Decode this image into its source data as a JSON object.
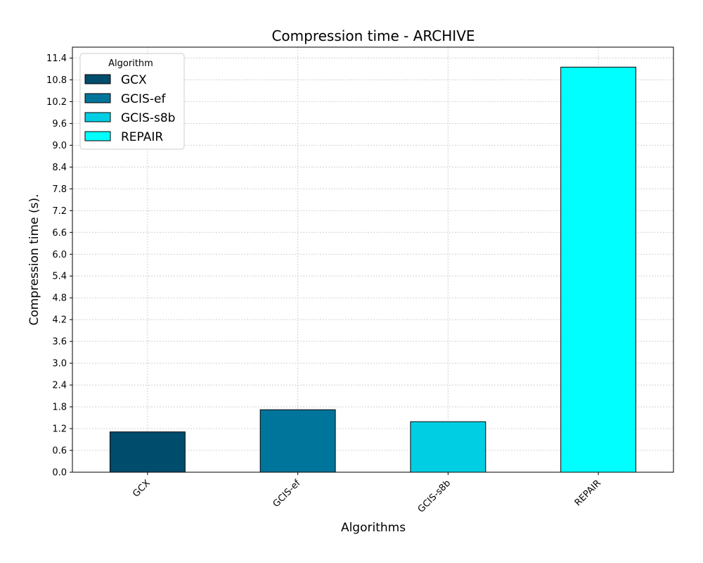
{
  "chart_data": {
    "type": "bar",
    "title": "Compression time -  ARCHIVE",
    "xlabel": "Algorithms",
    "ylabel": "Compression time (s).",
    "categories": [
      "GCX",
      "GCIS-ef",
      "GCIS-s8b",
      "REPAIR"
    ],
    "values": [
      1.11,
      1.72,
      1.39,
      11.15
    ],
    "colors": [
      "#004c6d",
      "#00759b",
      "#00cfe3",
      "#00ffff"
    ],
    "ylim": [
      0,
      11.7
    ],
    "yticks": [
      "0.0",
      "0.6",
      "1.2",
      "1.8",
      "2.4",
      "3.0",
      "3.6",
      "4.2",
      "4.8",
      "5.4",
      "6.0",
      "6.6",
      "7.2",
      "7.8",
      "8.4",
      "9.0",
      "9.6",
      "10.2",
      "10.8",
      "11.4"
    ],
    "grid": true,
    "legend": {
      "title": "Algorithm",
      "position": "top-left",
      "entries": [
        "GCX",
        "GCIS-ef",
        "GCIS-s8b",
        "REPAIR"
      ]
    }
  }
}
